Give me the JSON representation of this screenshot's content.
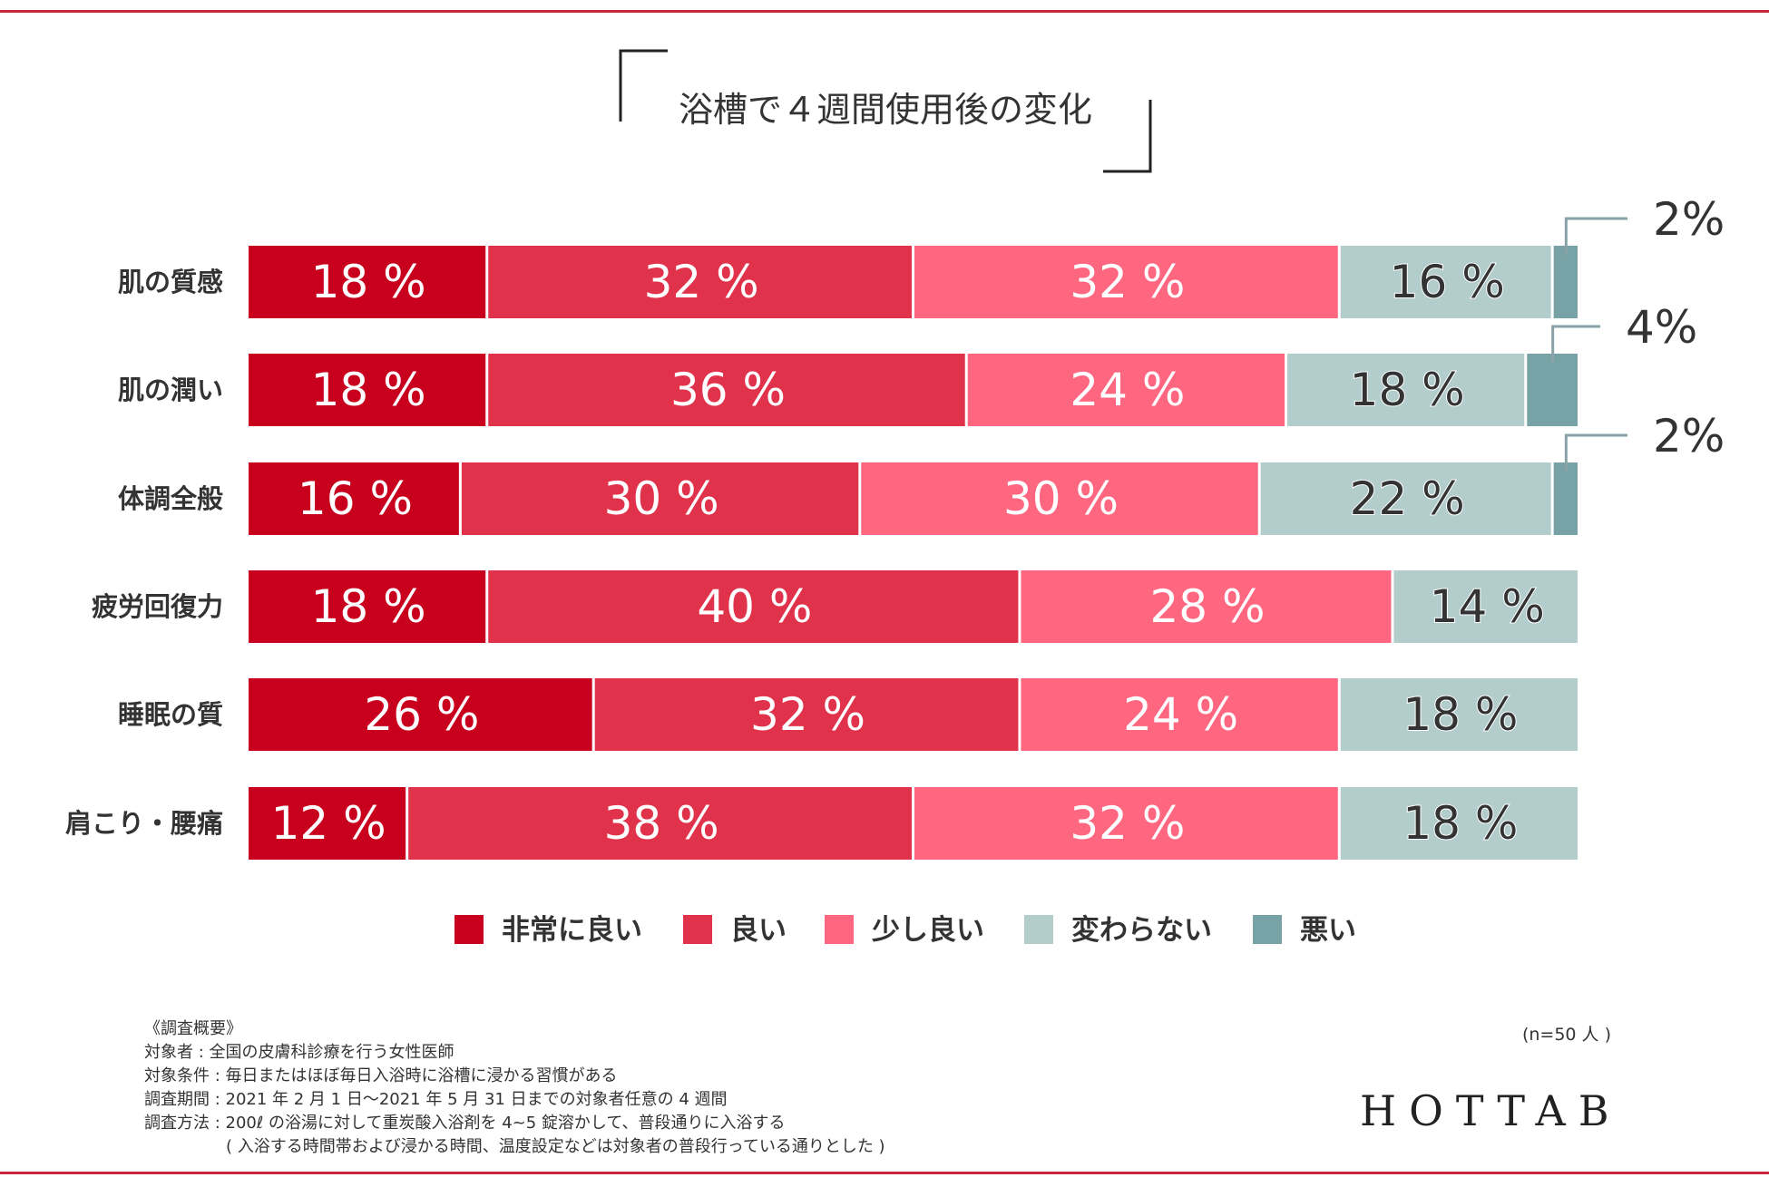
{
  "chart_data": {
    "type": "bar",
    "orientation": "horizontal",
    "stacked": true,
    "title": "浴槽で４週間使用後の変化",
    "categories": [
      "肌の質感",
      "肌の潤い",
      "体調全般",
      "疲労回復力",
      "睡眠の質",
      "肩こり・腰痛"
    ],
    "series": [
      {
        "name": "非常に良い",
        "color": "#c8001e",
        "values": [
          18,
          18,
          16,
          18,
          26,
          12
        ]
      },
      {
        "name": "良い",
        "color": "#e0324b",
        "values": [
          32,
          36,
          30,
          40,
          32,
          38
        ]
      },
      {
        "name": "少し良い",
        "color": "#ff6680",
        "values": [
          32,
          24,
          30,
          28,
          24,
          32
        ]
      },
      {
        "name": "変わらない",
        "color": "#b3cccc",
        "values": [
          16,
          18,
          22,
          14,
          18,
          18
        ]
      },
      {
        "name": "悪い",
        "color": "#78a3a6",
        "values": [
          2,
          4,
          2,
          0,
          0,
          0
        ]
      }
    ],
    "value_suffix": "%",
    "xlim": [
      0,
      100
    ],
    "legend": "bottom",
    "grid": false
  },
  "footnote": {
    "heading": "《調査概要》",
    "lines": [
      "対象者 : 全国の皮膚科診療を行う女性医師",
      "対象条件 : 毎日またはほぼ毎日入浴時に浴槽に浸かる習慣がある",
      "調査期間 : 2021 年 2 月 1 日～2021 年 5 月 31 日までの対象者任意の 4 週間",
      "調査方法 : 200ℓ の浴湯に対して重炭酸入浴剤を 4~5 錠溶かして、普段通りに入浴する",
      "　　　　　( 入浴する時間帯および浸かる時間、温度設定などは対象者の普段行っている通りとした )"
    ]
  },
  "sample_size": "(n=50 人 )",
  "brand": "HOTTAB"
}
